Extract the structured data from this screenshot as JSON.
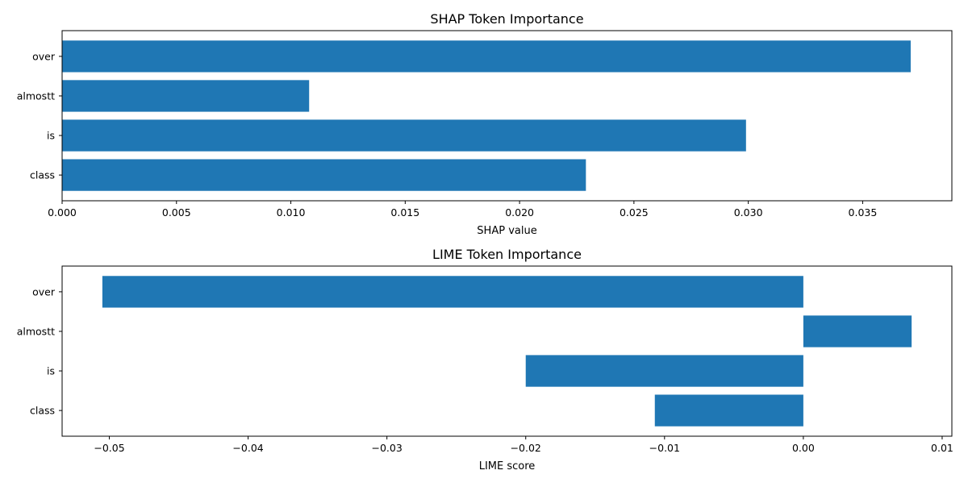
{
  "chart_data": [
    {
      "type": "bar",
      "orientation": "horizontal",
      "title": "SHAP Token Importance",
      "xlabel": "SHAP value",
      "ylabel": "",
      "categories": [
        "over",
        "almostt",
        "is",
        "class"
      ],
      "values": [
        0.0371,
        0.0108,
        0.0299,
        0.0229
      ],
      "xlim": [
        0.0,
        0.0389
      ],
      "xticks": [
        0.0,
        0.005,
        0.01,
        0.015,
        0.02,
        0.025,
        0.03,
        0.035
      ],
      "xtick_labels": [
        "0.000",
        "0.005",
        "0.010",
        "0.015",
        "0.020",
        "0.025",
        "0.030",
        "0.035"
      ],
      "color": "#1f77b4",
      "grid": false
    },
    {
      "type": "bar",
      "orientation": "horizontal",
      "title": "LIME Token Importance",
      "xlabel": "LIME score",
      "ylabel": "",
      "categories": [
        "over",
        "almostt",
        "is",
        "class"
      ],
      "values": [
        -0.0505,
        0.0078,
        -0.02,
        -0.0107
      ],
      "xlim": [
        -0.0534,
        0.0107
      ],
      "xticks": [
        -0.05,
        -0.04,
        -0.03,
        -0.02,
        -0.01,
        0.0,
        0.01
      ],
      "xtick_labels": [
        "−0.05",
        "−0.04",
        "−0.03",
        "−0.02",
        "−0.01",
        "0.00",
        "0.01"
      ],
      "color": "#1f77b4",
      "grid": false
    }
  ]
}
